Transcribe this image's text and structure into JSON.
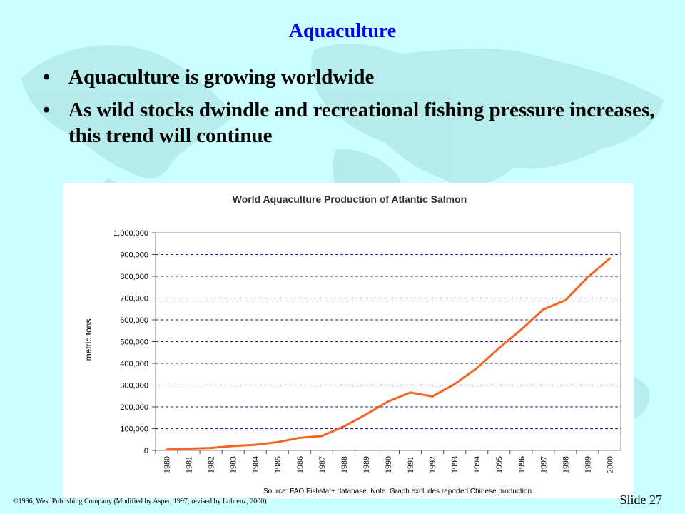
{
  "slide": {
    "title": "Aquaculture",
    "bullets": [
      "Aquaculture is growing worldwide",
      "As wild stocks dwindle and recreational fishing pressure increases, this trend will continue"
    ],
    "footer_left": "©1996, West Publishing Company  (Modified by Asper, 1997; revised by Lohrenz, 2000)",
    "footer_right": "Slide 27"
  },
  "colors": {
    "background": "#ccffff",
    "title": "#0000ff",
    "line": "#f26522",
    "grid": "#1f1f8f"
  },
  "chart_data": {
    "type": "line",
    "title": "World Aquaculture Production of Atlantic Salmon",
    "ylabel": "metric tons",
    "xlabel": "",
    "source": "Source:  FAO Fishstat+ database.  Note:  Graph excludes reported Chinese production",
    "ylim": [
      0,
      1000000
    ],
    "yticks": [
      "0",
      "100,000",
      "200,000",
      "300,000",
      "400,000",
      "500,000",
      "600,000",
      "700,000",
      "800,000",
      "900,000",
      "1,000,000"
    ],
    "categories": [
      "1980",
      "1981",
      "1982",
      "1983",
      "1984",
      "1985",
      "1986",
      "1987",
      "1988",
      "1989",
      "1990",
      "1991",
      "1992",
      "1993",
      "1994",
      "1995",
      "1996",
      "1997",
      "1998",
      "1999",
      "2000"
    ],
    "series": [
      {
        "values": [
          4000,
          8000,
          11000,
          20000,
          26000,
          38000,
          58000,
          66000,
          110000,
          165000,
          225000,
          266000,
          248000,
          305000,
          378000,
          470000,
          555000,
          648000,
          690000,
          795000,
          882000
        ]
      }
    ],
    "grid": true,
    "grid_style": "dashed-horizontal"
  }
}
